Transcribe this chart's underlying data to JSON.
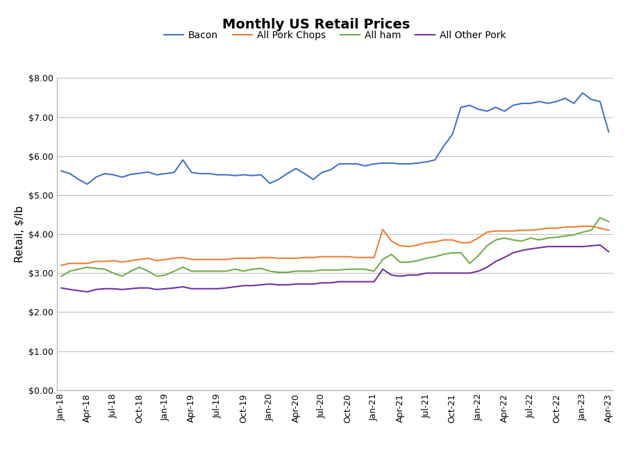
{
  "title": "Monthly US Retail Prices",
  "ylabel": "Retail, $/lb",
  "ylim": [
    0.0,
    8.0
  ],
  "yticks": [
    0.0,
    1.0,
    2.0,
    3.0,
    4.0,
    5.0,
    6.0,
    7.0,
    8.0
  ],
  "series": {
    "Bacon": {
      "color": "#4472C4",
      "values": [
        5.62,
        5.55,
        5.4,
        5.28,
        5.46,
        5.55,
        5.52,
        5.46,
        5.53,
        5.56,
        5.59,
        5.52,
        5.55,
        5.58,
        5.9,
        5.58,
        5.55,
        5.55,
        5.52,
        5.52,
        5.5,
        5.52,
        5.5,
        5.52,
        5.3,
        5.4,
        5.55,
        5.68,
        5.55,
        5.4,
        5.58,
        5.65,
        5.8,
        5.8,
        5.8,
        5.75,
        5.8,
        5.82,
        5.82,
        5.8,
        5.8,
        5.82,
        5.85,
        5.9,
        6.25,
        6.55,
        7.25,
        7.3,
        7.2,
        7.15,
        7.25,
        7.15,
        7.3,
        7.35,
        7.35,
        7.4,
        7.35,
        7.4,
        7.48,
        7.35,
        7.62,
        7.45,
        7.4,
        6.62
      ]
    },
    "All Pork Chops": {
      "color": "#ED7D31",
      "values": [
        3.2,
        3.25,
        3.25,
        3.25,
        3.3,
        3.3,
        3.32,
        3.28,
        3.32,
        3.35,
        3.38,
        3.32,
        3.35,
        3.38,
        3.4,
        3.35,
        3.35,
        3.35,
        3.35,
        3.35,
        3.38,
        3.38,
        3.38,
        3.4,
        3.4,
        3.38,
        3.38,
        3.38,
        3.4,
        3.4,
        3.42,
        3.42,
        3.42,
        3.42,
        3.4,
        3.4,
        3.4,
        4.12,
        3.82,
        3.7,
        3.68,
        3.72,
        3.78,
        3.8,
        3.85,
        3.85,
        3.78,
        3.78,
        3.9,
        4.05,
        4.08,
        4.08,
        4.08,
        4.1,
        4.1,
        4.12,
        4.15,
        4.15,
        4.18,
        4.18,
        4.2,
        4.2,
        4.15,
        4.1
      ]
    },
    "All ham": {
      "color": "#70AD47",
      "values": [
        2.92,
        3.05,
        3.1,
        3.15,
        3.12,
        3.1,
        3.0,
        2.92,
        3.05,
        3.15,
        3.05,
        2.92,
        2.95,
        3.05,
        3.15,
        3.05,
        3.05,
        3.05,
        3.05,
        3.05,
        3.1,
        3.05,
        3.1,
        3.12,
        3.05,
        3.02,
        3.02,
        3.05,
        3.05,
        3.05,
        3.08,
        3.08,
        3.08,
        3.1,
        3.1,
        3.1,
        3.05,
        3.35,
        3.48,
        3.28,
        3.28,
        3.32,
        3.38,
        3.42,
        3.48,
        3.52,
        3.52,
        3.25,
        3.45,
        3.7,
        3.85,
        3.9,
        3.85,
        3.82,
        3.9,
        3.85,
        3.9,
        3.92,
        3.95,
        3.98,
        4.05,
        4.1,
        4.42,
        4.32
      ]
    },
    "All Other Pork": {
      "color": "#7030A0",
      "values": [
        2.62,
        2.58,
        2.55,
        2.52,
        2.58,
        2.6,
        2.6,
        2.58,
        2.6,
        2.62,
        2.62,
        2.58,
        2.6,
        2.62,
        2.65,
        2.6,
        2.6,
        2.6,
        2.6,
        2.62,
        2.65,
        2.68,
        2.68,
        2.7,
        2.72,
        2.7,
        2.7,
        2.72,
        2.72,
        2.72,
        2.75,
        2.75,
        2.78,
        2.78,
        2.78,
        2.78,
        2.78,
        3.1,
        2.95,
        2.92,
        2.95,
        2.95,
        3.0,
        3.0,
        3.0,
        3.0,
        3.0,
        3.0,
        3.05,
        3.15,
        3.3,
        3.4,
        3.52,
        3.58,
        3.62,
        3.65,
        3.68,
        3.68,
        3.68,
        3.68,
        3.68,
        3.7,
        3.72,
        3.55
      ]
    }
  },
  "x_labels": [
    "Jan-18",
    "Apr-18",
    "Jul-18",
    "Oct-18",
    "Jan-19",
    "Apr-19",
    "Jul-19",
    "Oct-19",
    "Jan-20",
    "Apr-20",
    "Jul-20",
    "Oct-20",
    "Jan-21",
    "Apr-21",
    "Jul-21",
    "Oct-21",
    "Jan-22",
    "Apr-22",
    "Jul-22",
    "Oct-22",
    "Jan-23",
    "Apr-23"
  ],
  "x_label_indices": [
    0,
    3,
    6,
    9,
    12,
    15,
    18,
    21,
    24,
    27,
    30,
    33,
    36,
    39,
    42,
    45,
    48,
    51,
    54,
    57,
    60,
    63
  ],
  "n_months": 64,
  "background_color": "#FFFFFF",
  "grid_color": "#C0C0C0",
  "legend_labels": [
    "Bacon",
    "All Pork Chops",
    "All ham",
    "All Other Pork"
  ],
  "legend_colors": [
    "#4472C4",
    "#ED7D31",
    "#70AD47",
    "#7030A0"
  ]
}
